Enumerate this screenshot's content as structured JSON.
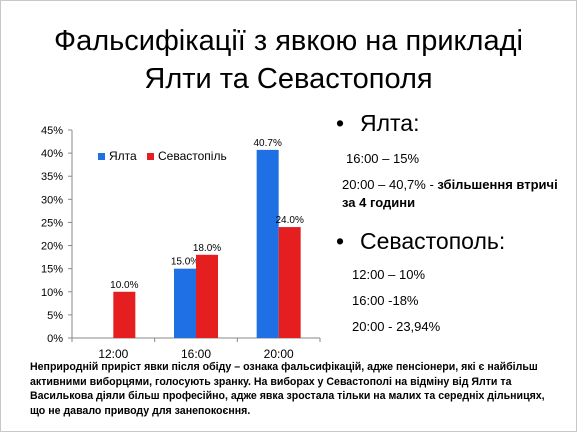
{
  "slide": {
    "title_line1": "Фальсифікації з явкою на прикладі",
    "title_line2": "Ялти та Севастополя"
  },
  "chart_data": {
    "type": "bar",
    "categories": [
      "12:00",
      "16:00",
      "20:00"
    ],
    "series": [
      {
        "name": "Ялта",
        "color": "#1f6fe5",
        "values": [
          null,
          15.0,
          40.7
        ],
        "labels": [
          "",
          "15.0%",
          "40.7%"
        ]
      },
      {
        "name": "Севастопіль",
        "color": "#e51f1f",
        "values": [
          10.0,
          18.0,
          24.0
        ],
        "labels": [
          "10.0%",
          "18.0%",
          "24.0%"
        ]
      }
    ],
    "ylim": [
      0,
      45
    ],
    "yticks": [
      "0%",
      "5%",
      "10%",
      "15%",
      "20%",
      "25%",
      "30%",
      "35%",
      "40%",
      "45%"
    ],
    "legend": "top-left",
    "grid": false
  },
  "bullets": {
    "yalta_head": "Ялта:",
    "yalta_line1": "16:00 – 15%",
    "yalta_line2_a": "20:00 – 40,7% - ",
    "yalta_line2_b": "збільшення втричі за 4 години",
    "sev_head": "Севастополь:",
    "sev_line1": "12:00 – 10%",
    "sev_line2": "16:00 -18%",
    "sev_line3": "20:00 - 23,94%"
  },
  "footnote": "Неприродній приріст явки після обіду – ознака фальсифікацій, адже пенсіонери, які  є найбільш активними виборцями, голосують зранку. На виборах у Севастополі на відміну від Ялти та Василькова діяли більш професійно, адже явка зростала тільки на малих та середніх дільницях, що не давало приводу для занепокоєння."
}
